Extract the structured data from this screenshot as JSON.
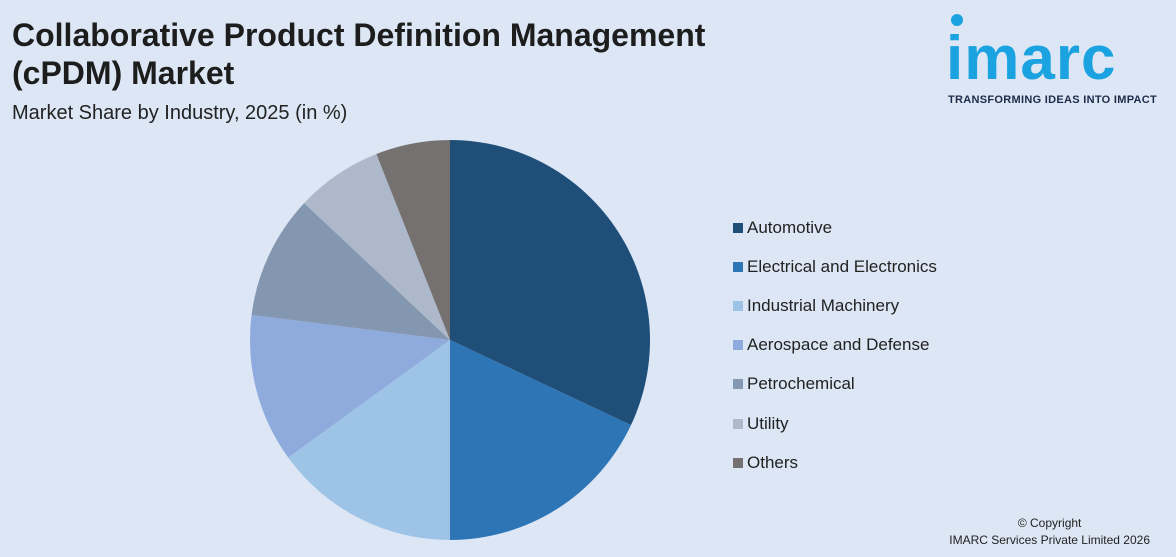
{
  "header": {
    "title": "Collaborative Product Definition Management (cPDM) Market",
    "subtitle": "Market Share by Industry, 2025 (in %)"
  },
  "logo": {
    "wordmark": "imarc",
    "tagline": "TRANSFORMING IDEAS INTO IMPACT",
    "color": "#1aa3e0"
  },
  "chart_data": {
    "type": "pie",
    "title": "Collaborative Product Definition Management (cPDM) Market",
    "subtitle": "Market Share by Industry, 2025 (in %)",
    "legend_position": "right",
    "slices": [
      {
        "label": "Automotive",
        "value": 32,
        "color": "#1f4e79"
      },
      {
        "label": "Electrical and Electronics",
        "value": 18,
        "color": "#2e75b6"
      },
      {
        "label": "Industrial Machinery",
        "value": 15,
        "color": "#9dc3e6"
      },
      {
        "label": "Aerospace and Defense",
        "value": 12,
        "color": "#8faadc"
      },
      {
        "label": "Petrochemical",
        "value": 10,
        "color": "#8497b0"
      },
      {
        "label": "Utility",
        "value": 7,
        "color": "#adb9ca"
      },
      {
        "label": "Others",
        "value": 6,
        "color": "#767171"
      }
    ]
  },
  "footer": {
    "copyright_line1": "© Copyright",
    "copyright_line2": "IMARC Services Private Limited 2026"
  }
}
